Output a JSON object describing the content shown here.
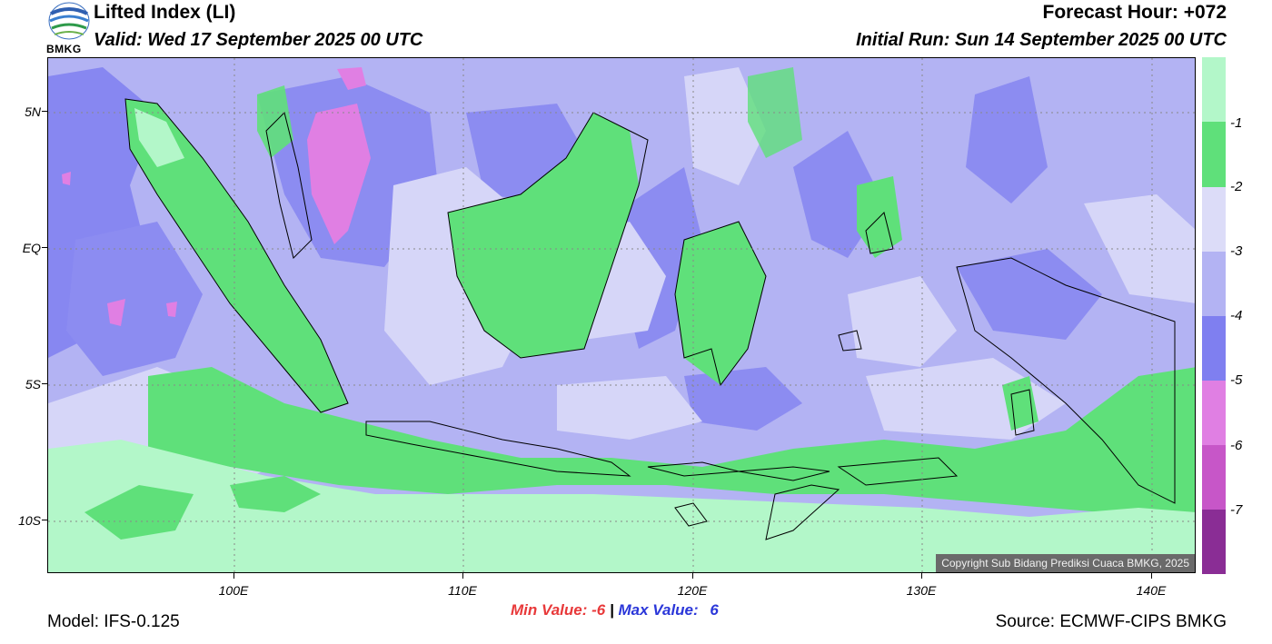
{
  "header": {
    "title": "Lifted Index (LI)",
    "valid": "Valid: Wed 17 September 2025 00 UTC",
    "forecast_hour": "Forecast Hour: +072",
    "initial_run": "Initial Run: Sun 14 September 2025 00 UTC",
    "logo_text": "BMKG"
  },
  "axes": {
    "y_labels": [
      "5N",
      "EQ",
      "5S",
      "10S"
    ],
    "x_labels": [
      "100E",
      "110E",
      "120E",
      "130E",
      "140E"
    ]
  },
  "colorbar": {
    "labels": [
      "-1",
      "-2",
      "-3",
      "-4",
      "-5",
      "-6",
      "-7"
    ],
    "colors": [
      "#b3f7c9",
      "#5fe07a",
      "#dcdcf8",
      "#b3b3f3",
      "#7f7ff0",
      "#e07fe3",
      "#c756c8",
      "#a540ab",
      "#8a2d95"
    ]
  },
  "map": {
    "copyright": "Copyright Sub Bidang Prediksi Cuaca BMKG, 2025"
  },
  "footer": {
    "min_label": "Min Value:",
    "min_value": "-6",
    "separator": "|",
    "max_label": "Max Value:",
    "max_value": "6",
    "model": "Model: IFS-0.125",
    "source": "Source: ECMWF-CIPS BMKG"
  }
}
